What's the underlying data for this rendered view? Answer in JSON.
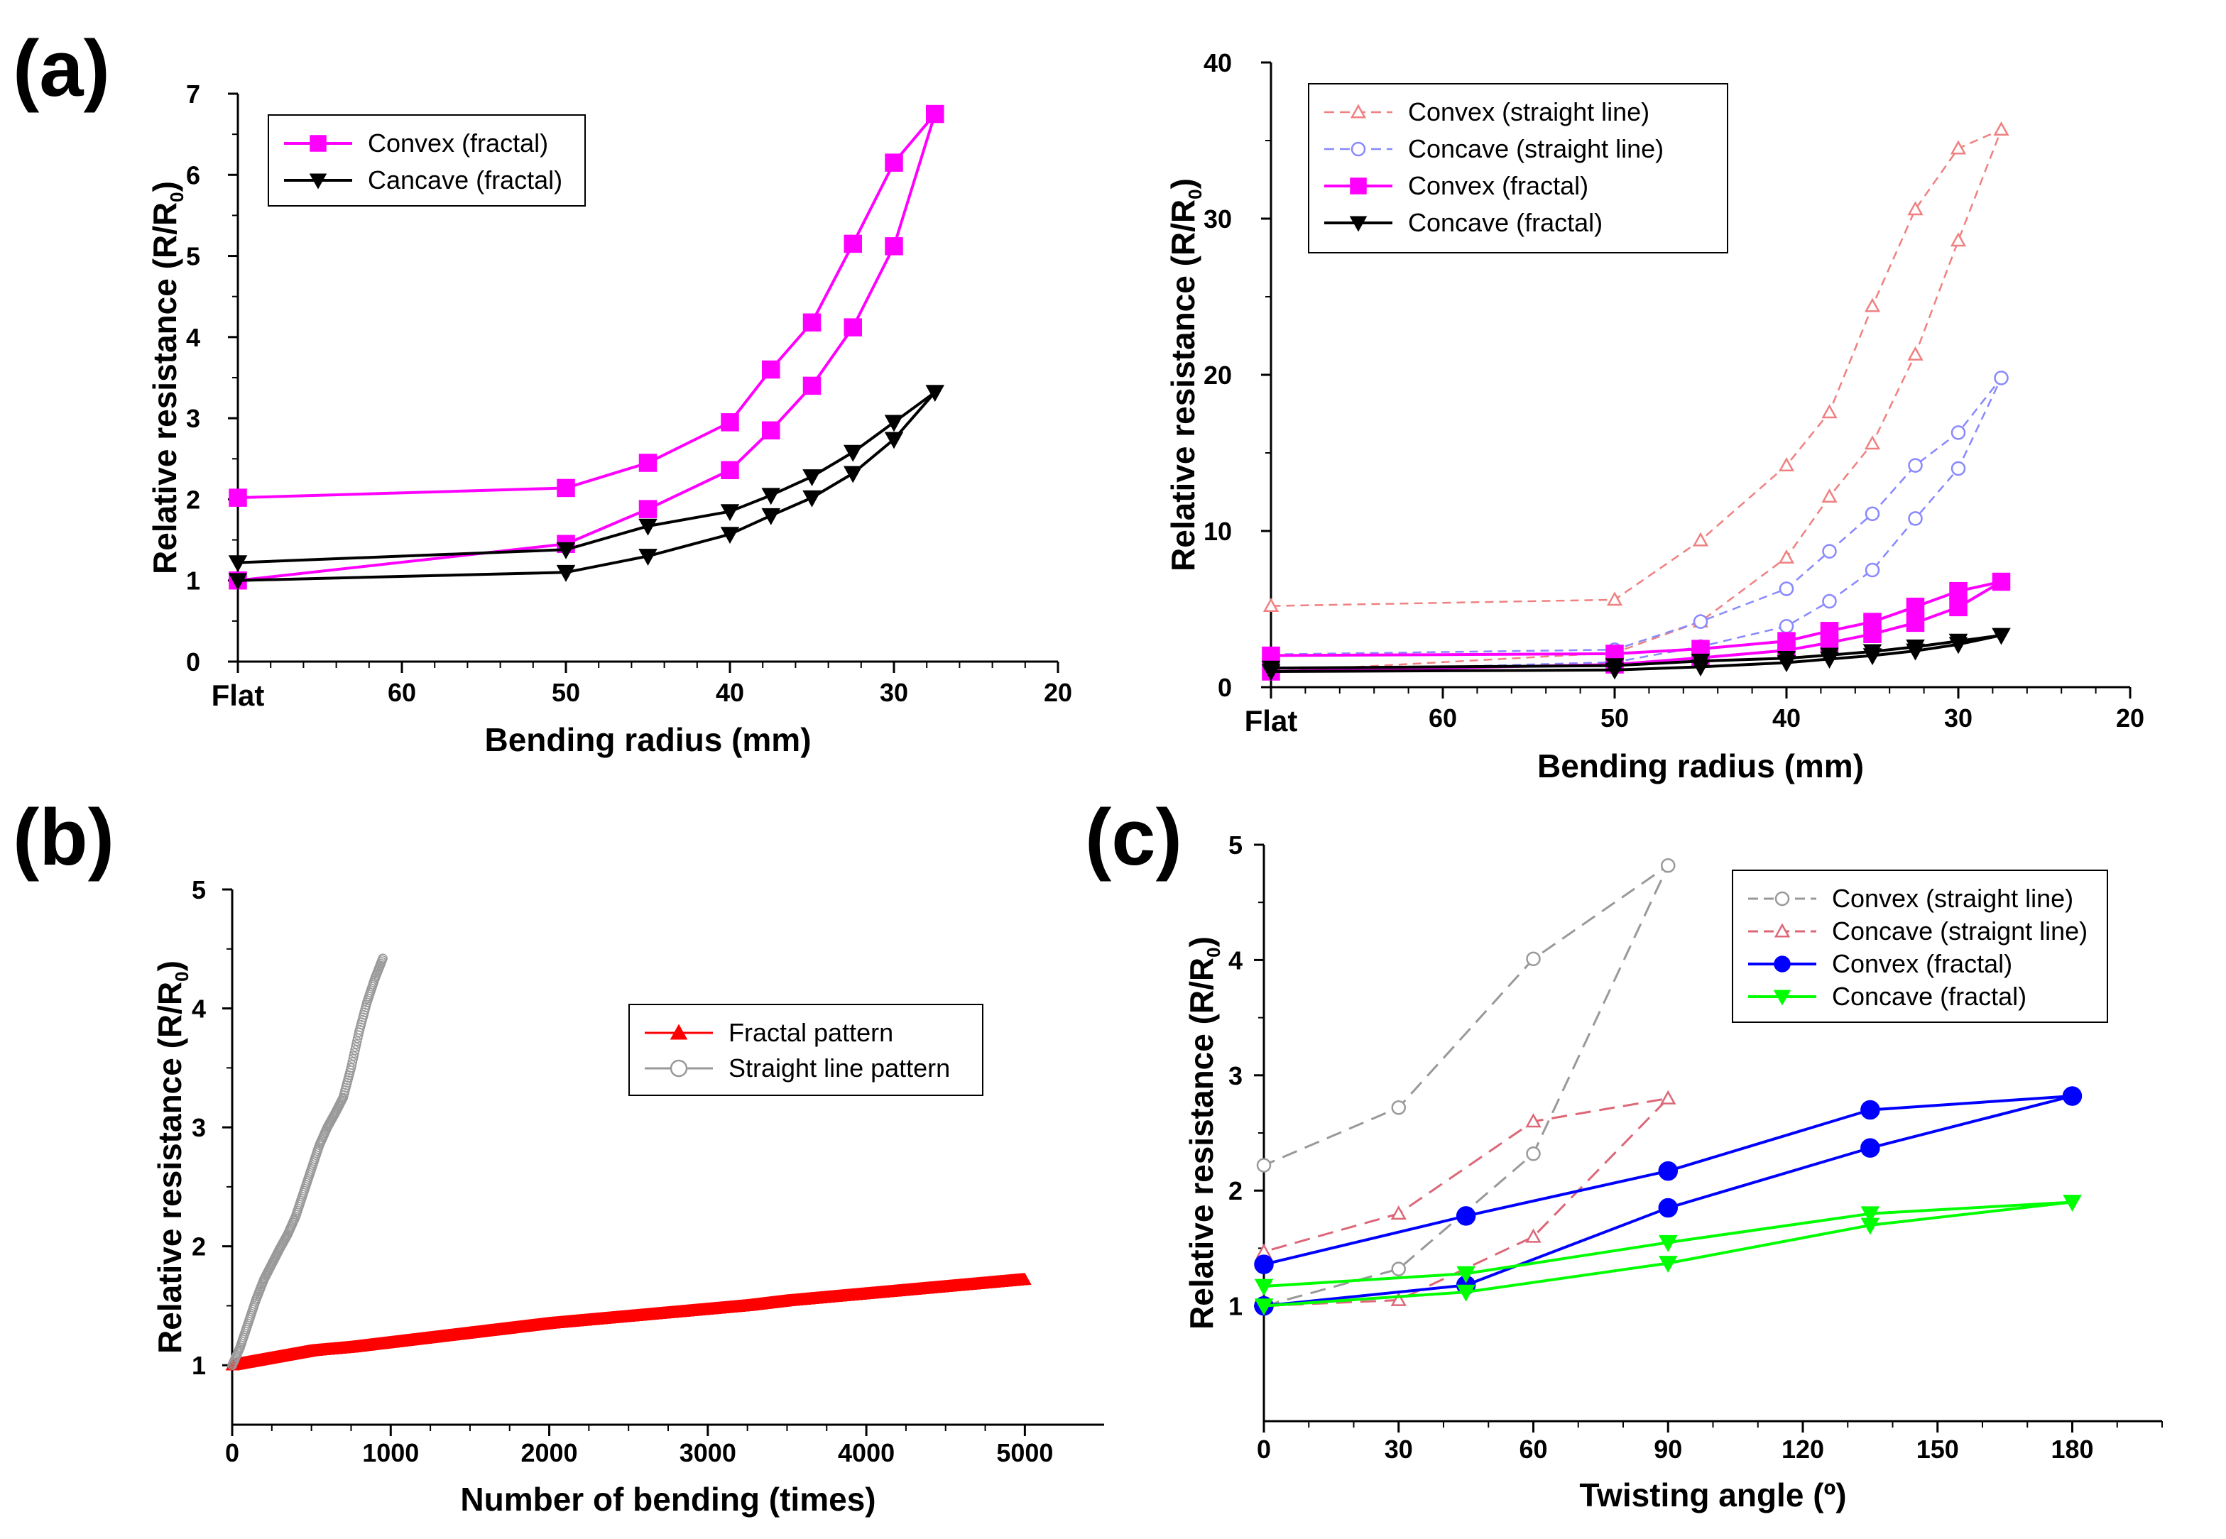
{
  "panel_labels": {
    "a": "(a)",
    "b": "(b)",
    "c": "(c)"
  },
  "colors": {
    "magenta": "#ff00ff",
    "black": "#000000",
    "salmon": "#f08080",
    "lavender": "#8888ff",
    "red": "#ff0000",
    "gray": "#999999",
    "blue": "#0000ff",
    "green": "#00ff00",
    "gray_c": "#999999",
    "pink_c": "#dd6677"
  },
  "chart_data": [
    {
      "id": "a1",
      "type": "line",
      "xlabel": "Bending radius (mm)",
      "ylabel": "Relative resistance (R/R",
      "ylabel_sub": "0",
      "ylabel_end": ")",
      "xlim": [
        70,
        20
      ],
      "ylim": [
        0,
        7
      ],
      "xticks": [
        {
          "v": 70,
          "label": "Flat"
        },
        {
          "v": 60,
          "label": "60"
        },
        {
          "v": 50,
          "label": "50"
        },
        {
          "v": 40,
          "label": "40"
        },
        {
          "v": 30,
          "label": "30"
        },
        {
          "v": 20,
          "label": "20"
        }
      ],
      "yticks": [
        {
          "v": 0,
          "label": "0"
        },
        {
          "v": 1,
          "label": "1"
        },
        {
          "v": 2,
          "label": "2"
        },
        {
          "v": 3,
          "label": "3"
        },
        {
          "v": 4,
          "label": "4"
        },
        {
          "v": 5,
          "label": "5"
        },
        {
          "v": 6,
          "label": "6"
        },
        {
          "v": 7,
          "label": "7"
        }
      ],
      "series": [
        {
          "name": "Convex (fractal)",
          "color": "magenta",
          "marker": "square",
          "dash": false,
          "width": 4,
          "x": [
            70,
            50,
            45,
            40,
            37.5,
            35,
            32.5,
            30,
            27.5,
            30,
            32.5,
            35,
            37.5,
            40,
            45,
            50,
            70
          ],
          "y": [
            1.0,
            1.45,
            1.88,
            2.36,
            2.85,
            3.4,
            4.12,
            5.12,
            6.75,
            6.15,
            5.15,
            4.18,
            3.6,
            2.95,
            2.45,
            2.14,
            2.02
          ]
        },
        {
          "name": "Cancave (fractal)",
          "color": "black",
          "marker": "tri-down",
          "dash": false,
          "width": 4,
          "x": [
            70,
            50,
            45,
            40,
            37.5,
            35,
            32.5,
            30,
            27.5,
            30,
            32.5,
            35,
            37.5,
            40,
            45,
            50,
            70
          ],
          "y": [
            1.0,
            1.1,
            1.3,
            1.57,
            1.8,
            2.02,
            2.32,
            2.74,
            3.32,
            2.95,
            2.58,
            2.28,
            2.05,
            1.85,
            1.67,
            1.38,
            1.22
          ]
        }
      ]
    },
    {
      "id": "a2",
      "type": "line",
      "xlabel": "Bending radius (mm)",
      "ylabel": "Relative resistance (R/R",
      "ylabel_sub": "0",
      "ylabel_end": ")",
      "xlim": [
        70,
        20
      ],
      "ylim": [
        0,
        40
      ],
      "xticks": [
        {
          "v": 70,
          "label": "Flat"
        },
        {
          "v": 60,
          "label": "60"
        },
        {
          "v": 50,
          "label": "50"
        },
        {
          "v": 40,
          "label": "40"
        },
        {
          "v": 30,
          "label": "30"
        },
        {
          "v": 20,
          "label": "20"
        }
      ],
      "yticks": [
        {
          "v": 0,
          "label": "0"
        },
        {
          "v": 10,
          "label": "10"
        },
        {
          "v": 20,
          "label": "20"
        },
        {
          "v": 30,
          "label": "30"
        },
        {
          "v": 40,
          "label": "40"
        }
      ],
      "series": [
        {
          "name": "Convex (straight line)",
          "color": "salmon",
          "marker": "tri-up-open",
          "dash": true,
          "width": 2.5,
          "x": [
            70,
            50,
            45,
            40,
            37.5,
            35,
            32.5,
            30,
            27.5,
            30,
            32.5,
            35,
            37.5,
            40,
            45,
            50,
            70
          ],
          "y": [
            1.0,
            2.2,
            4.2,
            8.3,
            12.2,
            15.6,
            21.3,
            28.6,
            35.7,
            34.5,
            30.6,
            24.4,
            17.6,
            14.2,
            9.4,
            5.6,
            5.2
          ]
        },
        {
          "name": "Concave (straight line)",
          "color": "lavender",
          "marker": "circle-open",
          "dash": true,
          "width": 2.5,
          "x": [
            70,
            50,
            45,
            40,
            37.5,
            35,
            32.5,
            30,
            27.5,
            30,
            32.5,
            35,
            37.5,
            40,
            45,
            50,
            70
          ],
          "y": [
            1.0,
            1.6,
            2.6,
            3.9,
            5.5,
            7.5,
            10.8,
            14.0,
            19.8,
            16.3,
            14.2,
            11.1,
            8.7,
            6.3,
            4.2,
            2.4,
            2.1
          ]
        },
        {
          "name": "Convex (fractal)",
          "color": "magenta",
          "marker": "square",
          "dash": false,
          "width": 4,
          "x": [
            70,
            50,
            45,
            40,
            37.5,
            35,
            32.5,
            30,
            27.5,
            30,
            32.5,
            35,
            37.5,
            40,
            45,
            50,
            70
          ],
          "y": [
            1.0,
            1.45,
            1.88,
            2.36,
            2.85,
            3.4,
            4.12,
            5.12,
            6.75,
            6.15,
            5.15,
            4.18,
            3.6,
            2.95,
            2.45,
            2.14,
            2.02
          ]
        },
        {
          "name": "Concave (fractal)",
          "color": "black",
          "marker": "tri-down",
          "dash": false,
          "width": 4,
          "x": [
            70,
            50,
            45,
            40,
            37.5,
            35,
            32.5,
            30,
            27.5,
            30,
            32.5,
            35,
            37.5,
            40,
            45,
            50,
            70
          ],
          "y": [
            1.0,
            1.1,
            1.3,
            1.57,
            1.8,
            2.02,
            2.32,
            2.74,
            3.32,
            2.95,
            2.58,
            2.28,
            2.05,
            1.85,
            1.67,
            1.38,
            1.22
          ]
        }
      ]
    },
    {
      "id": "b",
      "type": "scatter",
      "xlabel": "Number of bending (times)",
      "ylabel": "Relative resistance (R/R",
      "ylabel_sub": "0",
      "ylabel_end": ")",
      "xlim": [
        0,
        5500
      ],
      "ylim": [
        0.5,
        5
      ],
      "xticks": [
        {
          "v": 0,
          "label": "0"
        },
        {
          "v": 1000,
          "label": "1000"
        },
        {
          "v": 2000,
          "label": "2000"
        },
        {
          "v": 3000,
          "label": "3000"
        },
        {
          "v": 4000,
          "label": "4000"
        },
        {
          "v": 5000,
          "label": "5000"
        }
      ],
      "yticks": [
        {
          "v": 1,
          "label": "1"
        },
        {
          "v": 2,
          "label": "2"
        },
        {
          "v": 3,
          "label": "3"
        },
        {
          "v": 4,
          "label": "4"
        },
        {
          "v": 5,
          "label": "5"
        }
      ],
      "series": [
        {
          "name": "Fractal pattern",
          "color": "red",
          "marker": "tri-up",
          "dash": false,
          "width": 2,
          "x": [
            0,
            250,
            500,
            750,
            1000,
            1250,
            1500,
            1750,
            2000,
            2250,
            2500,
            2750,
            3000,
            3250,
            3500,
            3750,
            4000,
            4250,
            4500,
            4750,
            5000
          ],
          "y": [
            1.0,
            1.06,
            1.12,
            1.15,
            1.19,
            1.23,
            1.27,
            1.31,
            1.35,
            1.38,
            1.41,
            1.44,
            1.47,
            1.5,
            1.54,
            1.57,
            1.6,
            1.63,
            1.66,
            1.69,
            1.72
          ]
        },
        {
          "name": "Straight line pattern",
          "color": "gray",
          "marker": "circle-open",
          "dash": false,
          "width": 1.5,
          "x": [
            0,
            50,
            100,
            150,
            200,
            250,
            300,
            350,
            400,
            450,
            500,
            550,
            600,
            650,
            700,
            750,
            800,
            850,
            900,
            950
          ],
          "y": [
            1.0,
            1.15,
            1.35,
            1.55,
            1.72,
            1.85,
            1.98,
            2.1,
            2.25,
            2.45,
            2.65,
            2.85,
            3.0,
            3.12,
            3.25,
            3.5,
            3.8,
            4.05,
            4.25,
            4.42
          ]
        }
      ]
    },
    {
      "id": "c",
      "type": "line",
      "xlabel": "Twisting angle (º)",
      "ylabel": "Relative resistance (R/R",
      "ylabel_sub": "0",
      "ylabel_end": ")",
      "xlim": [
        0,
        200
      ],
      "ylim": [
        0,
        5
      ],
      "xticks": [
        {
          "v": 0,
          "label": "0"
        },
        {
          "v": 30,
          "label": "30"
        },
        {
          "v": 60,
          "label": "60"
        },
        {
          "v": 90,
          "label": "90"
        },
        {
          "v": 120,
          "label": "120"
        },
        {
          "v": 150,
          "label": "150"
        },
        {
          "v": 180,
          "label": "180"
        }
      ],
      "yticks": [
        {
          "v": 1,
          "label": "1"
        },
        {
          "v": 2,
          "label": "2"
        },
        {
          "v": 3,
          "label": "3"
        },
        {
          "v": 4,
          "label": "4"
        },
        {
          "v": 5,
          "label": "5"
        }
      ],
      "series": [
        {
          "name": "Convex (straight line)",
          "color": "gray_c",
          "marker": "circle-open",
          "dash": true,
          "width": 3,
          "x": [
            0,
            30,
            60,
            90,
            60,
            30,
            0
          ],
          "y": [
            1.0,
            1.32,
            2.32,
            4.82,
            4.01,
            2.72,
            2.22
          ]
        },
        {
          "name": "Concave (straignt line)",
          "color": "pink_c",
          "marker": "tri-up-open",
          "dash": true,
          "width": 3,
          "x": [
            0,
            30,
            60,
            90,
            60,
            30,
            0
          ],
          "y": [
            1.0,
            1.05,
            1.6,
            2.8,
            2.6,
            1.8,
            1.47
          ]
        },
        {
          "name": "Convex (fractal)",
          "color": "blue",
          "marker": "circle",
          "dash": false,
          "width": 4,
          "x": [
            0,
            45,
            90,
            135,
            180,
            135,
            90,
            45,
            0
          ],
          "y": [
            1.0,
            1.18,
            1.85,
            2.37,
            2.82,
            2.7,
            2.17,
            1.78,
            1.36
          ]
        },
        {
          "name": "Concave (fractal)",
          "color": "green",
          "marker": "tri-down",
          "dash": false,
          "width": 4,
          "x": [
            0,
            45,
            90,
            135,
            180,
            135,
            90,
            45,
            0
          ],
          "y": [
            1.0,
            1.12,
            1.37,
            1.7,
            1.9,
            1.8,
            1.55,
            1.28,
            1.17
          ]
        }
      ]
    }
  ]
}
